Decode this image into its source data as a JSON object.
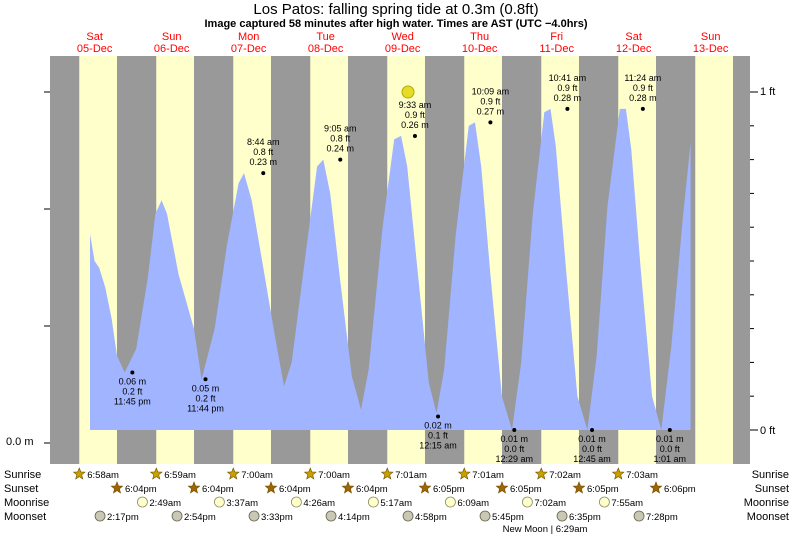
{
  "header": {
    "title": "Los Patos: falling  spring tide at 0.3m (0.8ft)",
    "subtitle": "Image captured 58 minutes after high water. Times are AST (UTC −4.0hrs)"
  },
  "colors": {
    "night": "#999999",
    "day": "#ffffcc",
    "water": "#a0b4ff",
    "day_label": "#ff0000",
    "sunrise_star": "#c8a000",
    "sunset_star": "#a06400",
    "moonrise": "#ffffcc",
    "moonset": "#c8c8b4",
    "now_marker": "#e6dc28"
  },
  "chart_data": {
    "type": "area",
    "title": "Los Patos: falling  spring tide at 0.3m (0.8ft)",
    "y_left_label": "0.0 m",
    "y_right_labels": [
      "1 ft",
      "0 ft"
    ],
    "ylim_ft": [
      -0.05,
      1.05
    ],
    "days": [
      {
        "name": "Sat",
        "date": "05-Dec"
      },
      {
        "name": "Sun",
        "date": "06-Dec"
      },
      {
        "name": "Mon",
        "date": "07-Dec"
      },
      {
        "name": "Tue",
        "date": "08-Dec"
      },
      {
        "name": "Wed",
        "date": "09-Dec"
      },
      {
        "name": "Thu",
        "date": "10-Dec"
      },
      {
        "name": "Fri",
        "date": "11-Dec"
      },
      {
        "name": "Sat",
        "date": "12-Dec"
      },
      {
        "name": "Sun",
        "date": "13-Dec"
      }
    ],
    "tide_curve_ft": [
      [
        0.0,
        0.58
      ],
      [
        0.06,
        0.5
      ],
      [
        0.12,
        0.48
      ],
      [
        0.2,
        0.42
      ],
      [
        0.28,
        0.33
      ],
      [
        0.35,
        0.22
      ],
      [
        0.45,
        0.17
      ],
      [
        0.6,
        0.24
      ],
      [
        0.75,
        0.45
      ],
      [
        0.85,
        0.64
      ],
      [
        0.93,
        0.68
      ],
      [
        1.0,
        0.64
      ],
      [
        1.15,
        0.46
      ],
      [
        1.25,
        0.38
      ],
      [
        1.35,
        0.3
      ],
      [
        1.45,
        0.15
      ],
      [
        1.62,
        0.3
      ],
      [
        1.78,
        0.55
      ],
      [
        1.93,
        0.73
      ],
      [
        2.0,
        0.76
      ],
      [
        2.1,
        0.68
      ],
      [
        2.25,
        0.48
      ],
      [
        2.4,
        0.28
      ],
      [
        2.52,
        0.13
      ],
      [
        2.62,
        0.2
      ],
      [
        2.8,
        0.52
      ],
      [
        2.95,
        0.78
      ],
      [
        3.03,
        0.8
      ],
      [
        3.12,
        0.7
      ],
      [
        3.25,
        0.44
      ],
      [
        3.4,
        0.16
      ],
      [
        3.52,
        0.06
      ],
      [
        3.62,
        0.18
      ],
      [
        3.8,
        0.6
      ],
      [
        3.95,
        0.86
      ],
      [
        4.04,
        0.87
      ],
      [
        4.12,
        0.78
      ],
      [
        4.25,
        0.48
      ],
      [
        4.4,
        0.14
      ],
      [
        4.5,
        0.05
      ],
      [
        4.6,
        0.18
      ],
      [
        4.75,
        0.58
      ],
      [
        4.92,
        0.9
      ],
      [
        5.0,
        0.91
      ],
      [
        5.08,
        0.78
      ],
      [
        5.2,
        0.46
      ],
      [
        5.35,
        0.1
      ],
      [
        5.48,
        0.0
      ],
      [
        5.6,
        0.2
      ],
      [
        5.75,
        0.64
      ],
      [
        5.9,
        0.94
      ],
      [
        5.98,
        0.95
      ],
      [
        6.05,
        0.84
      ],
      [
        6.18,
        0.48
      ],
      [
        6.33,
        0.1
      ],
      [
        6.46,
        0.0
      ],
      [
        6.58,
        0.22
      ],
      [
        6.72,
        0.66
      ],
      [
        6.88,
        0.95
      ],
      [
        6.96,
        0.95
      ],
      [
        7.03,
        0.83
      ],
      [
        7.15,
        0.48
      ],
      [
        7.3,
        0.1
      ],
      [
        7.42,
        0.0
      ],
      [
        7.55,
        0.25
      ],
      [
        7.7,
        0.63
      ],
      [
        7.8,
        0.85
      ]
    ],
    "high_tides": [
      {
        "day": 2.25,
        "ft": 0.76,
        "time": "8:44 am",
        "ft_label": "0.8 ft",
        "m_label": "0.23 m"
      },
      {
        "day": 3.25,
        "ft": 0.8,
        "time": "9:05 am",
        "ft_label": "0.8 ft",
        "m_label": "0.24 m"
      },
      {
        "day": 4.22,
        "ft": 0.87,
        "time": "9:33 am",
        "ft_label": "0.9 ft",
        "m_label": "0.26 m"
      },
      {
        "day": 5.2,
        "ft": 0.91,
        "time": "10:09 am",
        "ft_label": "0.9 ft",
        "m_label": "0.27 m"
      },
      {
        "day": 6.2,
        "ft": 0.95,
        "time": "10:41 am",
        "ft_label": "0.9 ft",
        "m_label": "0.28 m"
      },
      {
        "day": 7.18,
        "ft": 0.95,
        "time": "11:24 am",
        "ft_label": "0.9 ft",
        "m_label": "0.28 m"
      }
    ],
    "low_tides": [
      {
        "day": 0.55,
        "ft": 0.17,
        "m_label": "0.06 m",
        "ft_label": "0.2 ft",
        "time": "11:45 pm"
      },
      {
        "day": 1.5,
        "ft": 0.15,
        "m_label": "0.05 m",
        "ft_label": "0.2 ft",
        "time": "11:44 pm"
      },
      {
        "day": 4.52,
        "ft": 0.04,
        "m_label": "0.02 m",
        "ft_label": "0.1 ft",
        "time": "12:15 am"
      },
      {
        "day": 5.51,
        "ft": 0.0,
        "m_label": "0.01 m",
        "ft_label": "0.0 ft",
        "time": "12:29 am"
      },
      {
        "day": 6.52,
        "ft": 0.0,
        "m_label": "0.01 m",
        "ft_label": "0.0 ft",
        "time": "12:45 am"
      },
      {
        "day": 7.53,
        "ft": 0.0,
        "m_label": "0.01 m",
        "ft_label": "0.0 ft",
        "time": "1:01 am"
      }
    ],
    "now_marker_day": 4.13
  },
  "astro": {
    "row_labels": [
      "Sunrise",
      "Sunset",
      "Moonrise",
      "Moonset"
    ],
    "sunrise": [
      "6:58am",
      "6:59am",
      "7:00am",
      "7:00am",
      "7:01am",
      "7:01am",
      "7:02am",
      "7:03am"
    ],
    "sunset": [
      "6:04pm",
      "6:04pm",
      "6:04pm",
      "6:04pm",
      "6:05pm",
      "6:05pm",
      "6:05pm",
      "6:06pm"
    ],
    "moonrise": [
      "2:49am",
      "3:37am",
      "4:26am",
      "5:17am",
      "6:09am",
      "7:02am",
      "7:55am"
    ],
    "moonset": [
      "2:17pm",
      "2:54pm",
      "3:33pm",
      "4:14pm",
      "4:58pm",
      "5:45pm",
      "6:35pm",
      "7:28pm"
    ],
    "new_moon": "New Moon | 6:29am"
  }
}
